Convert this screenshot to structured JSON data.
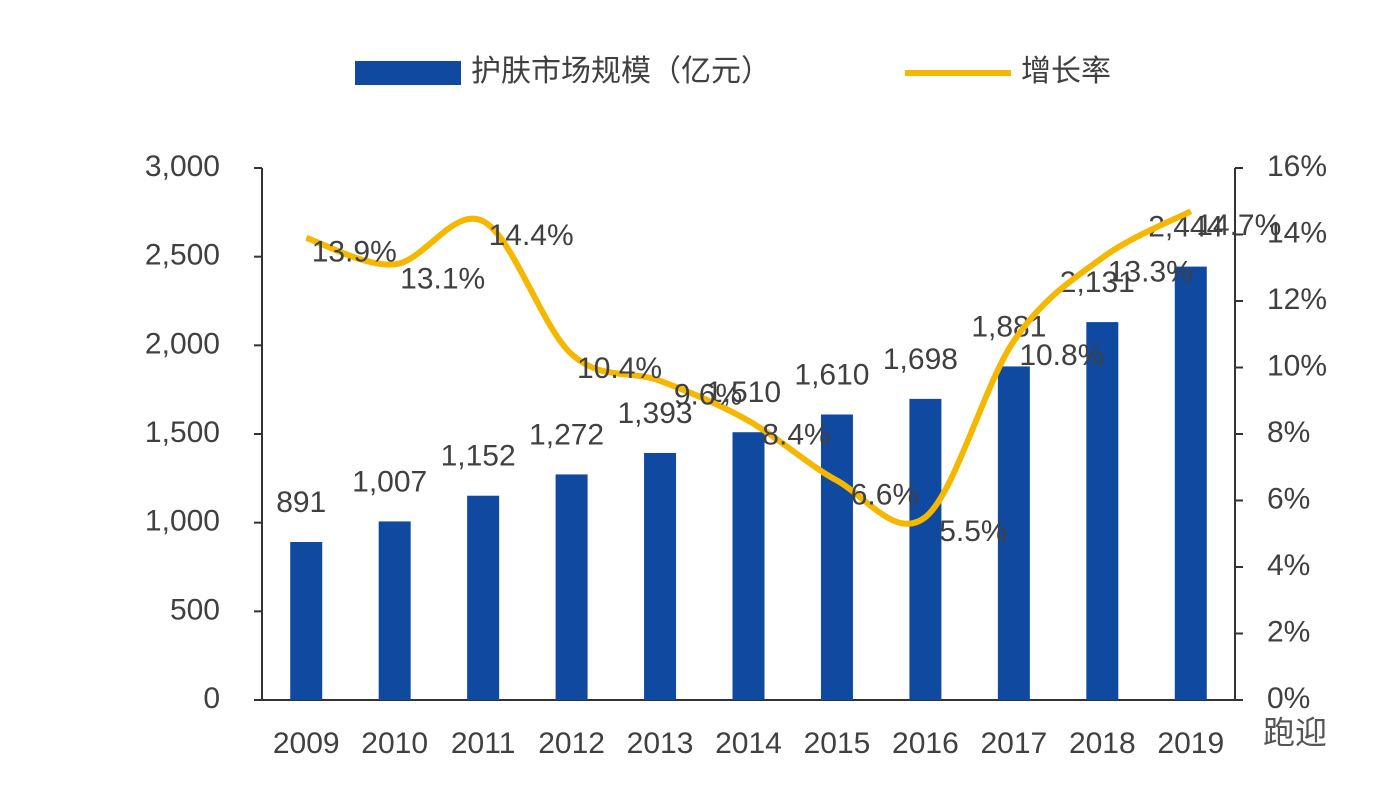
{
  "chart_data": {
    "type": "combo",
    "categories": [
      "2009",
      "2010",
      "2011",
      "2012",
      "2013",
      "2014",
      "2015",
      "2016",
      "2017",
      "2018",
      "2019"
    ],
    "series": [
      {
        "name": "护肤市场规模（亿元）",
        "type": "bar",
        "color": "#0f4aa0",
        "values": [
          891,
          1007,
          1152,
          1272,
          1393,
          1510,
          1610,
          1698,
          1881,
          2131,
          2444
        ],
        "value_labels": [
          "891",
          "1,007",
          "1,152",
          "1,272",
          "1,393",
          "1,510",
          "1,610",
          "1,698",
          "1,881",
          "2,131",
          "2,444"
        ]
      },
      {
        "name": "增长率",
        "type": "line",
        "axis": "y2",
        "color": "#f5b700",
        "values": [
          13.9,
          13.1,
          14.4,
          10.4,
          9.6,
          8.4,
          6.6,
          5.5,
          10.8,
          13.3,
          14.7
        ],
        "value_labels": [
          "13.9%",
          "13.1%",
          "14.4%",
          "10.4%",
          "9.6%",
          "8.4%",
          "6.6%",
          "5.5%",
          "10.8%",
          "13.3%",
          "14.7%"
        ]
      }
    ],
    "ylim": [
      0,
      3000
    ],
    "yticks": [
      0,
      500,
      {
        "value": 1000,
        "label": "1,000"
      },
      {
        "value": 1500,
        "label": "1,500"
      },
      {
        "value": 2000,
        "label": "2,000"
      },
      {
        "value": 2500,
        "label": "2,500"
      },
      {
        "value": 3000,
        "label": "3,000"
      }
    ],
    "y2lim": [
      0,
      16
    ],
    "y2ticks": [
      {
        "value": 0,
        "label": "0%"
      },
      {
        "value": 2,
        "label": "2%"
      },
      {
        "value": 4,
        "label": "4%"
      },
      {
        "value": 6,
        "label": "6%"
      },
      {
        "value": 8,
        "label": "8%"
      },
      {
        "value": 10,
        "label": "10%"
      },
      {
        "value": 12,
        "label": "12%"
      },
      {
        "value": 14,
        "label": "14%"
      },
      {
        "value": 16,
        "label": "16%"
      }
    ],
    "legend": "top",
    "watermark": "跑迎"
  }
}
